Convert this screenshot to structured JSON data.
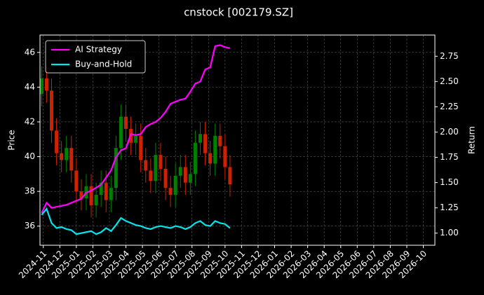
{
  "chart_data": {
    "type": "candlestick-returns",
    "title": "cnstock [002179.SZ]",
    "ylabel": "Price",
    "y2label": "Return",
    "xlim": [
      -0.2,
      23.7
    ],
    "xticks": [
      {
        "value": 0,
        "label": "2024-11"
      },
      {
        "value": 1,
        "label": "2024-12"
      },
      {
        "value": 2,
        "label": "2025-01"
      },
      {
        "value": 3,
        "label": "2025-02"
      },
      {
        "value": 4,
        "label": "2025-03"
      },
      {
        "value": 5,
        "label": "2025-04"
      },
      {
        "value": 6,
        "label": "2025-05"
      },
      {
        "value": 7,
        "label": "2025-06"
      },
      {
        "value": 8,
        "label": "2025-07"
      },
      {
        "value": 9,
        "label": "2025-08"
      },
      {
        "value": 10,
        "label": "2025-09"
      },
      {
        "value": 11,
        "label": "2025-10"
      },
      {
        "value": 12,
        "label": "2025-11"
      },
      {
        "value": 13,
        "label": "2025-12"
      },
      {
        "value": 14,
        "label": "2026-01"
      },
      {
        "value": 15,
        "label": "2026-02"
      },
      {
        "value": 16,
        "label": "2026-03"
      },
      {
        "value": 17,
        "label": "2026-04"
      },
      {
        "value": 18,
        "label": "2026-05"
      },
      {
        "value": 19,
        "label": "2026-06"
      },
      {
        "value": 20,
        "label": "2026-07"
      },
      {
        "value": 21,
        "label": "2026-08"
      },
      {
        "value": 22,
        "label": "2026-09"
      },
      {
        "value": 23,
        "label": "2026-10"
      }
    ],
    "ylim": [
      34.9,
      47.0
    ],
    "yticks": [
      36,
      38,
      40,
      42,
      44,
      46
    ],
    "y2lim": [
      0.88,
      2.96
    ],
    "y2ticks": [
      {
        "value": 1,
        "label": "1.00"
      },
      1.25,
      {
        "value": 1.5,
        "label": "1.50"
      },
      1.75,
      {
        "value": 2,
        "label": "2.00"
      },
      2.25,
      {
        "value": 2.5,
        "label": "2.50"
      },
      2.75
    ],
    "grid": true,
    "legend": "upper left",
    "up_color": "#008000",
    "down_color": "#cc2200",
    "x": [
      -0.1,
      0.2,
      0.5,
      0.8,
      1.1,
      1.4,
      1.7,
      2.0,
      2.3,
      2.6,
      2.9,
      3.2,
      3.5,
      3.8,
      4.1,
      4.4,
      4.7,
      5.0,
      5.3,
      5.6,
      5.9,
      6.2,
      6.5,
      6.8,
      7.1,
      7.4,
      7.7,
      8.0,
      8.3,
      8.6,
      8.9,
      9.2,
      9.5,
      9.8,
      10.1,
      10.4,
      10.7,
      11.0,
      11.3
    ],
    "open": [
      43.6,
      44.5,
      43.8,
      41.5,
      40.2,
      39.8,
      40.5,
      39.2,
      38.0,
      37.6,
      38.3,
      37.2,
      37.8,
      38.5,
      37.5,
      38.2,
      40.5,
      42.3,
      41.6,
      40.8,
      41.2,
      39.8,
      39.2,
      38.6,
      40.1,
      39.3,
      38.2,
      37.8,
      38.9,
      39.4,
      38.5,
      39.0,
      40.8,
      41.3,
      40.2,
      39.6,
      41.2,
      40.6,
      39.4
    ],
    "high": [
      45.2,
      45.2,
      44.5,
      42.2,
      40.9,
      41.2,
      41.2,
      39.9,
      38.7,
      39.0,
      39.0,
      38.5,
      39.2,
      39.2,
      38.9,
      41.2,
      43.0,
      43.0,
      42.3,
      41.9,
      41.9,
      40.5,
      39.9,
      40.8,
      40.8,
      40.0,
      38.9,
      39.6,
      40.1,
      40.1,
      39.7,
      41.5,
      42.0,
      42.0,
      40.9,
      41.9,
      41.9,
      41.3,
      40.1
    ],
    "low": [
      42.9,
      43.1,
      40.8,
      39.5,
      39.1,
      39.1,
      38.5,
      37.3,
      36.9,
      36.9,
      36.5,
      36.5,
      37.1,
      36.8,
      36.8,
      37.5,
      39.8,
      40.9,
      40.1,
      40.1,
      39.1,
      38.5,
      37.9,
      37.9,
      38.6,
      37.5,
      37.1,
      37.1,
      38.2,
      37.8,
      37.8,
      38.3,
      40.1,
      39.5,
      38.9,
      38.9,
      39.9,
      38.7,
      37.7
    ],
    "close": [
      44.5,
      43.8,
      41.5,
      40.2,
      39.8,
      40.5,
      39.2,
      38.0,
      37.6,
      38.3,
      37.2,
      37.8,
      38.5,
      37.5,
      38.2,
      40.5,
      42.3,
      41.6,
      40.8,
      41.2,
      39.8,
      39.2,
      38.6,
      40.1,
      39.3,
      38.2,
      37.8,
      38.9,
      39.4,
      38.5,
      39.0,
      40.8,
      41.3,
      40.2,
      39.6,
      41.2,
      40.6,
      39.4,
      38.4
    ],
    "series": [
      {
        "name": "AI Strategy",
        "color": "#ff00ff",
        "axis": "y2",
        "values": [
          1.2,
          1.3,
          1.25,
          1.26,
          1.27,
          1.28,
          1.3,
          1.32,
          1.34,
          1.4,
          1.42,
          1.45,
          1.48,
          1.55,
          1.62,
          1.75,
          1.82,
          1.84,
          1.98,
          1.97,
          1.98,
          2.05,
          2.08,
          2.1,
          2.14,
          2.2,
          2.28,
          2.3,
          2.32,
          2.33,
          2.4,
          2.48,
          2.5,
          2.62,
          2.64,
          2.85,
          2.86,
          2.84,
          2.83
        ]
      },
      {
        "name": "Buy-and-Hold",
        "color": "#00e5ee",
        "axis": "y2",
        "values": [
          1.18,
          1.24,
          1.1,
          1.05,
          1.06,
          1.04,
          1.03,
          0.99,
          1.0,
          1.01,
          1.02,
          0.99,
          1.01,
          1.05,
          1.02,
          1.08,
          1.15,
          1.12,
          1.1,
          1.08,
          1.07,
          1.05,
          1.04,
          1.06,
          1.07,
          1.06,
          1.05,
          1.07,
          1.06,
          1.04,
          1.06,
          1.1,
          1.12,
          1.08,
          1.07,
          1.12,
          1.1,
          1.09,
          1.05
        ]
      }
    ]
  }
}
